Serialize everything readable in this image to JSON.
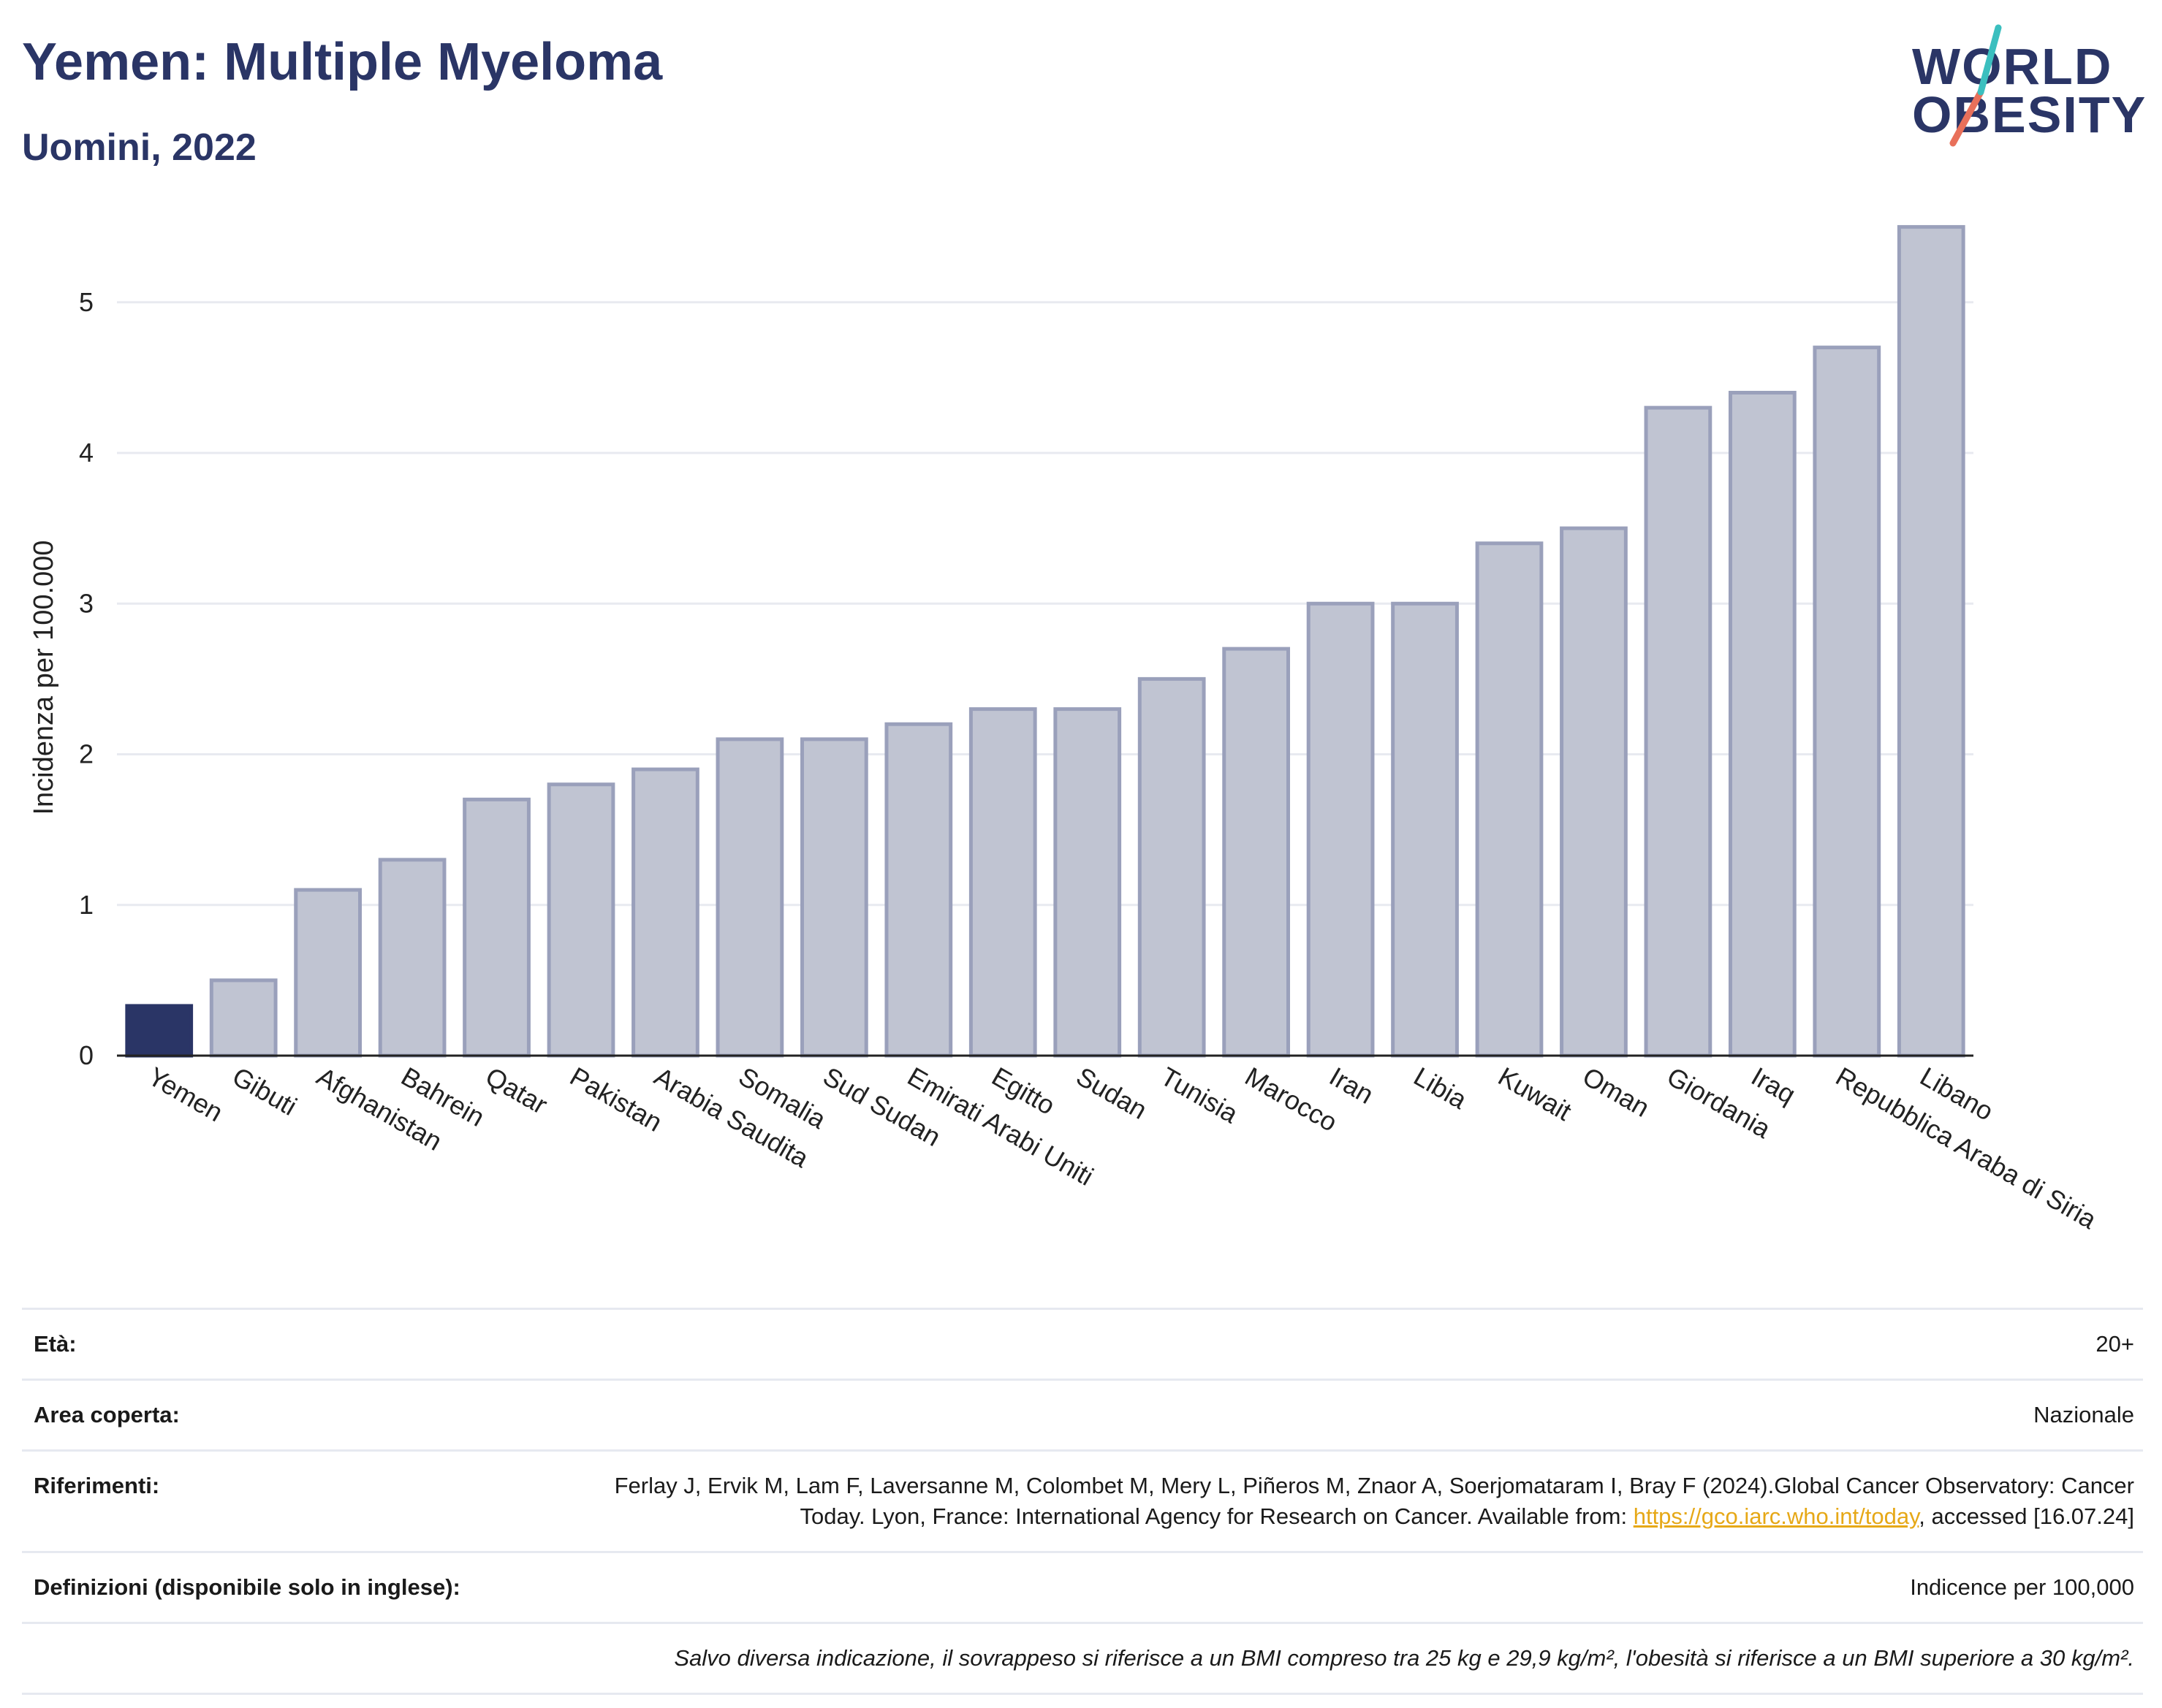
{
  "header": {
    "title": "Yemen: Multiple Myeloma",
    "subtitle": "Uomini, 2022"
  },
  "logo": {
    "line1": "WORLD",
    "line2": "OBESITY",
    "colors": {
      "text": "#2a3566",
      "teal": "#3bbfbf",
      "coral": "#e8705a"
    }
  },
  "colors": {
    "highlight_bar": "#2a3566",
    "bar_fill": "#c0c4d2",
    "bar_stroke": "#9aa0bb",
    "grid": "#e8eaf0"
  },
  "chart_data": {
    "type": "bar",
    "title": "",
    "xlabel": "",
    "ylabel": "Incidenza per 100.000",
    "ylim": [
      0,
      5.6
    ],
    "yticks": [
      0,
      1,
      2,
      3,
      4,
      5
    ],
    "grid": true,
    "highlight": "Yemen",
    "categories": [
      "Yemen",
      "Gibuti",
      "Afghanistan",
      "Bahrein",
      "Qatar",
      "Pakistan",
      "Arabia Saudita",
      "Somalia",
      "Sud Sudan",
      "Emirati Arabi Uniti",
      "Egitto",
      "Sudan",
      "Tunisia",
      "Marocco",
      "Iran",
      "Libia",
      "Kuwait",
      "Oman",
      "Giordania",
      "Iraq",
      "Repubblica Araba di Siria",
      "Libano"
    ],
    "values": [
      0.33,
      0.5,
      1.1,
      1.3,
      1.7,
      1.8,
      1.9,
      2.1,
      2.1,
      2.2,
      2.3,
      2.3,
      2.5,
      2.7,
      3.0,
      3.0,
      3.4,
      3.5,
      4.3,
      4.4,
      4.7,
      5.5
    ]
  },
  "meta": {
    "age_label": "Età:",
    "age_value": "20+",
    "area_label": "Area coperta:",
    "area_value": "Nazionale",
    "ref_label": "Riferimenti:",
    "ref_text_1": "Ferlay J, Ervik M, Lam F, Laversanne M, Colombet M, Mery L, Piñeros M, Znaor A, Soerjomataram I, Bray F (2024).Global Cancer Observatory: Cancer Today. Lyon, France: International Agency for Research on Cancer. Available from: ",
    "ref_link": "https://gco.iarc.who.int/today",
    "ref_text_2": ", accessed [16.07.24]",
    "def_label": "Definizioni (disponibile solo in inglese):",
    "def_value": "Indicence per 100,000",
    "note": "Salvo diversa indicazione, il sovrappeso si riferisce a un BMI compreso tra 25 kg e 29,9 kg/m², l'obesità si riferisce a un BMI superiore a 30 kg/m²."
  }
}
